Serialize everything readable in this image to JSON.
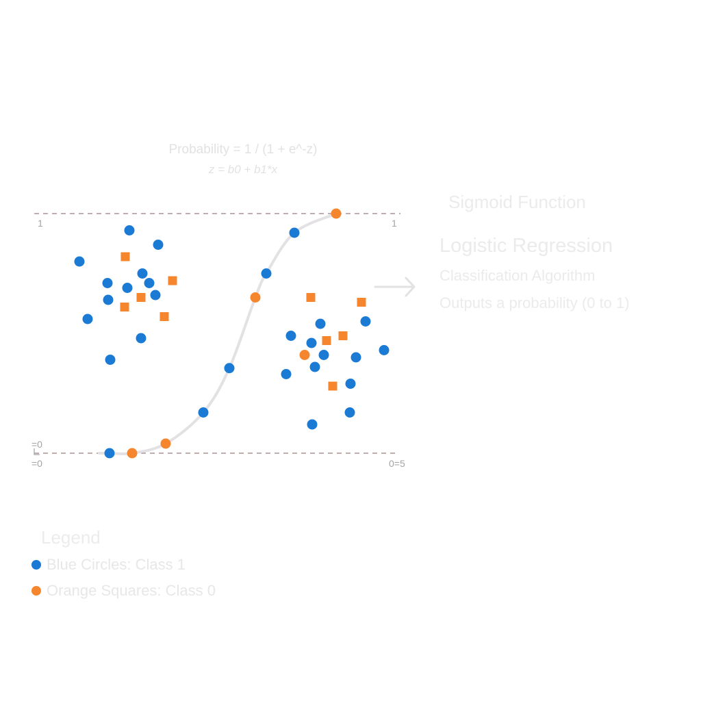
{
  "formula": {
    "line1": "Probability = 1 / (1 + e^-z)",
    "line2": "z = b0 + b1*x"
  },
  "axis": {
    "left_top": "1",
    "right_top": "1",
    "left_mid": "=0",
    "left_bottom": "=0",
    "right_bottom": "0=5"
  },
  "side_panel": {
    "sigmoid_label": "Sigmoid Function",
    "title": "Logistic Regression",
    "desc_line1": "Classification Algorithm",
    "desc_line2": "Outputs a probability (0 to 1)"
  },
  "legend": {
    "title": "Legend",
    "items": [
      {
        "label": "Blue Circles: Class 1",
        "color": "#1a7ad4"
      },
      {
        "label": "Orange Squares: Class 0",
        "color": "#f5862d"
      }
    ]
  },
  "colors": {
    "blue": "#1a7ad4",
    "orange": "#f5862d",
    "curve": "#e4e1e5",
    "dashed": "#9a7e7e",
    "arrow": "#e2e2e2"
  },
  "chart_data": {
    "type": "scatter",
    "ylim": [
      0,
      1
    ],
    "sigmoid_curve_points": [
      {
        "x": 0.16,
        "y": 0.0,
        "shape": "circle",
        "color": "blue"
      },
      {
        "x": 0.193,
        "y": 0.0,
        "shape": "circle",
        "color": "orange"
      },
      {
        "x": 0.242,
        "y": 0.04,
        "shape": "circle",
        "color": "orange"
      },
      {
        "x": 0.297,
        "y": 0.17,
        "shape": "circle",
        "color": "blue"
      },
      {
        "x": 0.335,
        "y": 0.355,
        "shape": "circle",
        "color": "blue"
      },
      {
        "x": 0.373,
        "y": 0.65,
        "shape": "circle",
        "color": "orange"
      },
      {
        "x": 0.389,
        "y": 0.75,
        "shape": "circle",
        "color": "blue"
      },
      {
        "x": 0.43,
        "y": 0.92,
        "shape": "circle",
        "color": "blue"
      },
      {
        "x": 0.491,
        "y": 1.0,
        "shape": "circle",
        "color": "orange"
      }
    ],
    "cluster_a": {
      "circles": [
        [
          0.189,
          0.93
        ],
        [
          0.116,
          0.8
        ],
        [
          0.231,
          0.87
        ],
        [
          0.208,
          0.75
        ],
        [
          0.157,
          0.71
        ],
        [
          0.218,
          0.71
        ],
        [
          0.186,
          0.69
        ],
        [
          0.158,
          0.64
        ],
        [
          0.227,
          0.66
        ],
        [
          0.128,
          0.56
        ],
        [
          0.206,
          0.48
        ],
        [
          0.161,
          0.39
        ]
      ],
      "squares": [
        [
          0.183,
          0.82
        ],
        [
          0.252,
          0.72
        ],
        [
          0.206,
          0.65
        ],
        [
          0.182,
          0.61
        ],
        [
          0.24,
          0.57
        ]
      ]
    },
    "cluster_b": {
      "circles": [
        [
          0.534,
          0.55
        ],
        [
          0.468,
          0.54
        ],
        [
          0.425,
          0.49
        ],
        [
          0.455,
          0.46
        ],
        [
          0.561,
          0.43
        ],
        [
          0.473,
          0.41
        ],
        [
          0.52,
          0.4
        ],
        [
          0.46,
          0.36
        ],
        [
          0.418,
          0.33
        ],
        [
          0.512,
          0.29
        ],
        [
          0.511,
          0.17
        ],
        [
          0.456,
          0.12
        ]
      ],
      "squares": [
        [
          0.454,
          0.65
        ],
        [
          0.528,
          0.63
        ],
        [
          0.501,
          0.49
        ],
        [
          0.477,
          0.47
        ],
        [
          0.486,
          0.28
        ]
      ],
      "orange_circles": [
        [
          0.445,
          0.41
        ]
      ]
    }
  }
}
